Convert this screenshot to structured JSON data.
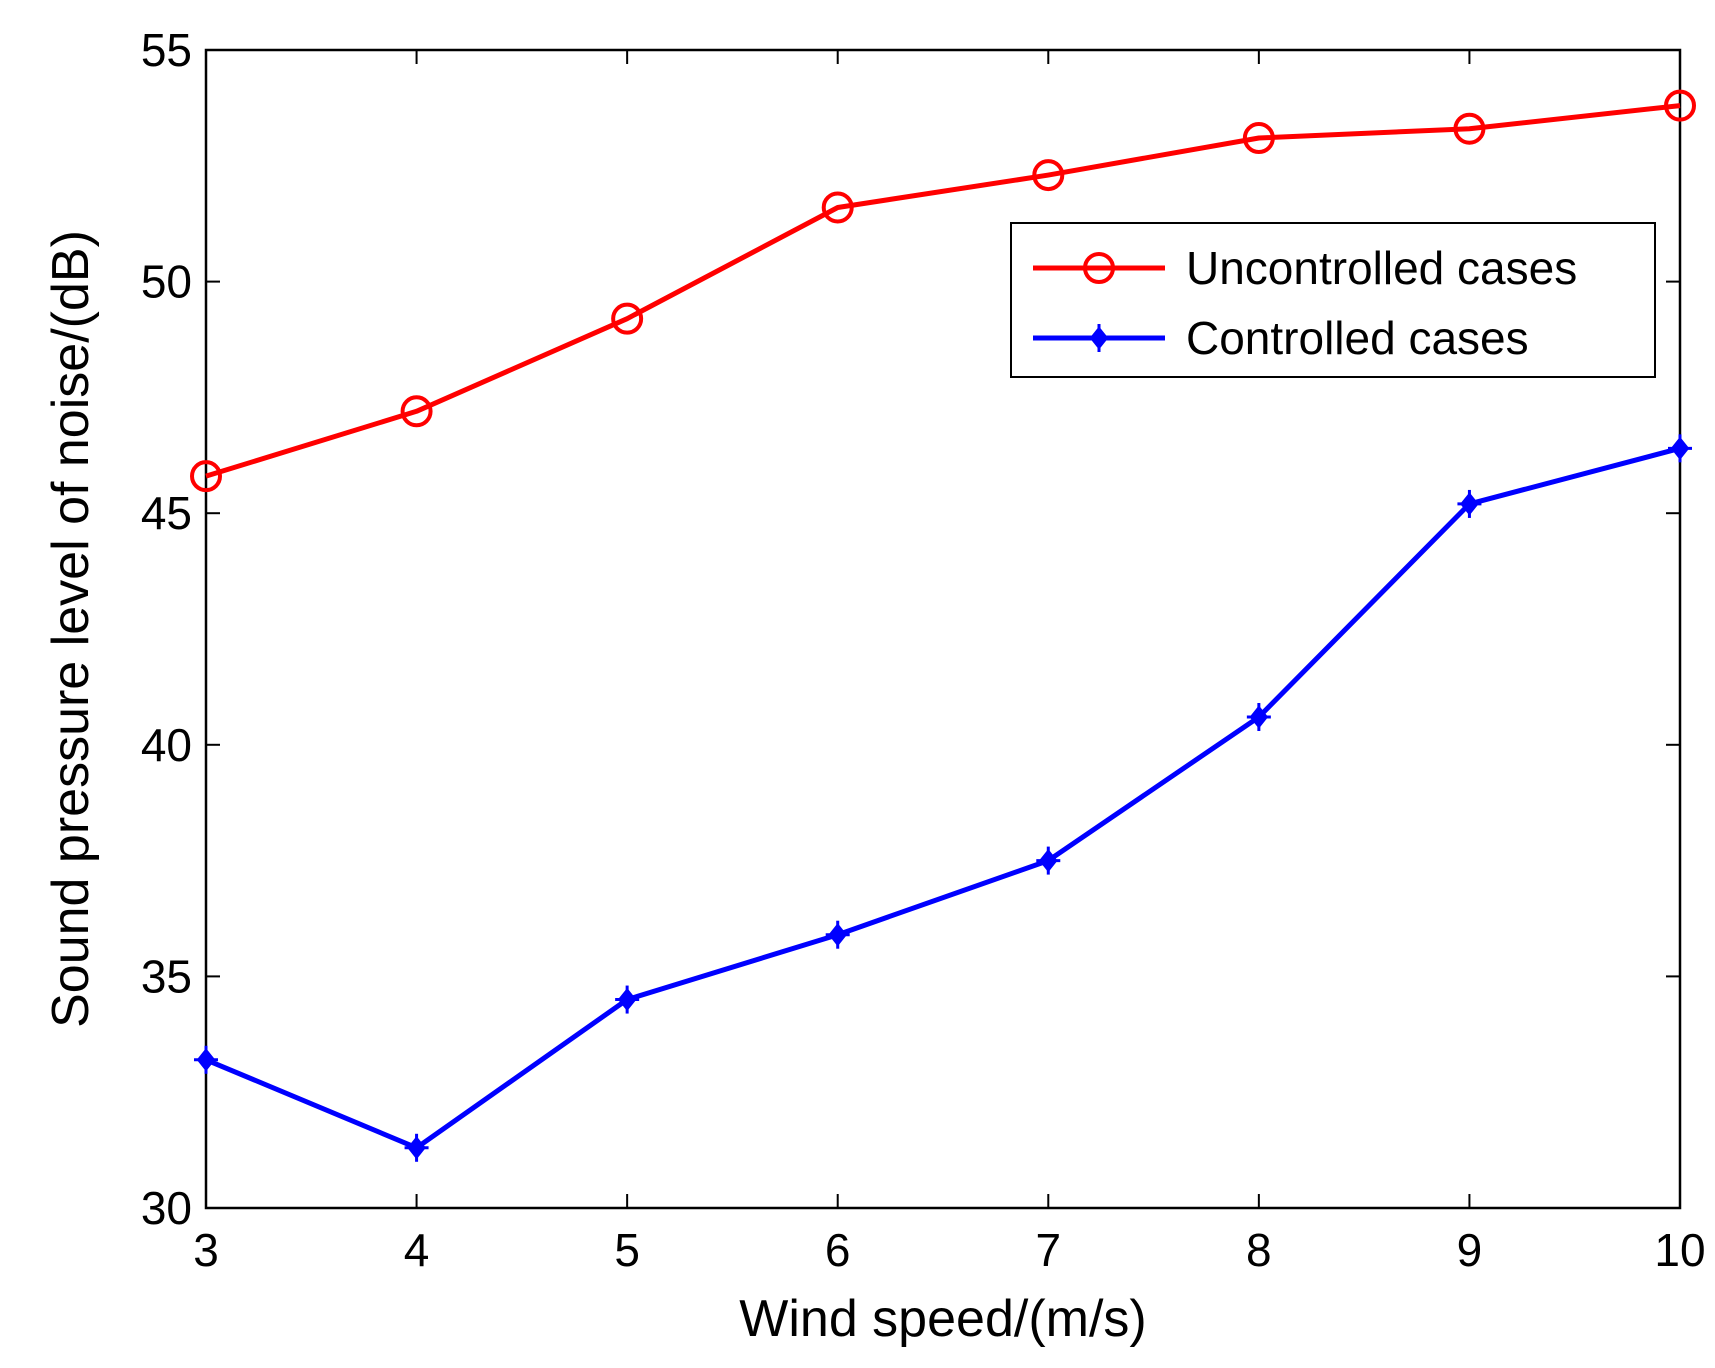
{
  "chart_data": {
    "type": "line",
    "title": "",
    "xlabel": "Wind speed/(m/s)",
    "ylabel": "Sound pressure level of noise/(dB)",
    "xlim": [
      3,
      10
    ],
    "ylim": [
      30,
      55
    ],
    "xticks": [
      3,
      4,
      5,
      6,
      7,
      8,
      9,
      10
    ],
    "yticks": [
      30,
      35,
      40,
      45,
      50,
      55
    ],
    "grid": false,
    "legend_position": "top-right",
    "x": [
      3,
      4,
      5,
      6,
      7,
      8,
      9,
      10
    ],
    "series": [
      {
        "name": "Uncontrolled cases",
        "color": "#ff0000",
        "marker": "circle",
        "values": [
          45.8,
          47.2,
          49.2,
          51.6,
          52.3,
          53.1,
          53.3,
          53.8
        ]
      },
      {
        "name": "Controlled cases",
        "color": "#0000ff",
        "marker": "diamond-cross",
        "values": [
          33.2,
          31.3,
          34.5,
          35.9,
          37.5,
          40.6,
          45.2,
          46.4
        ]
      }
    ]
  }
}
